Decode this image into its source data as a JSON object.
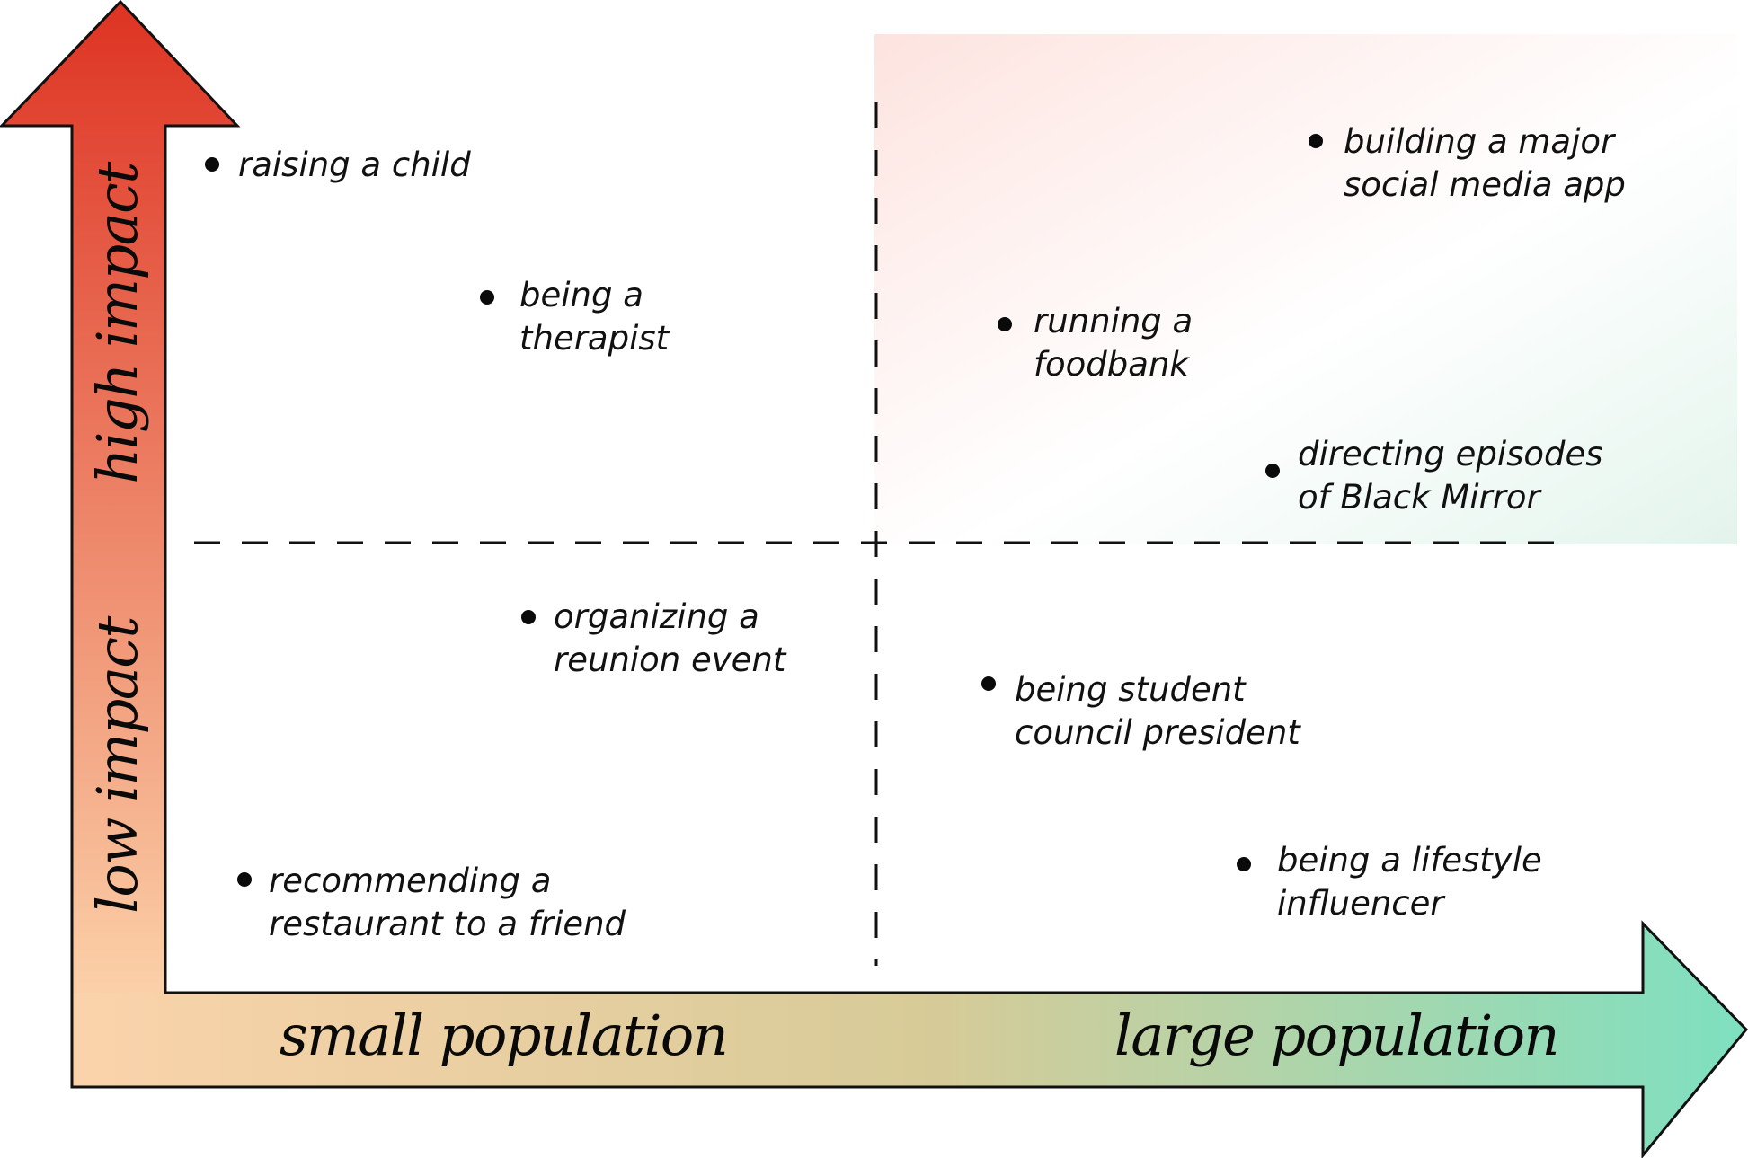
{
  "colors": {
    "vertical_arrow_top": "#de3323",
    "vertical_arrow_bottom": "#fbd0a8",
    "horizontal_arrow_left": "#fbd3ab",
    "horizontal_arrow_middle": "#d6cb98",
    "horizontal_arrow_right": "#7ee0c0",
    "quadrant_tint_pink": "#fde3df",
    "quadrant_tint_green": "#e3f4ec"
  },
  "axes": {
    "y_high": "high impact",
    "y_low": "low impact",
    "x_small": "small population",
    "x_large": "large population"
  },
  "items": [
    {
      "id": "raising-a-child",
      "lines": [
        "raising a child"
      ],
      "quadrant": "high impact / small population"
    },
    {
      "id": "being-a-therapist",
      "lines": [
        "being a",
        "therapist"
      ],
      "quadrant": "high impact / small population"
    },
    {
      "id": "building-social-media-app",
      "lines": [
        "building a major",
        "social media app"
      ],
      "quadrant": "high impact / large population"
    },
    {
      "id": "running-a-foodbank",
      "lines": [
        "running a",
        "foodbank"
      ],
      "quadrant": "high impact / large population"
    },
    {
      "id": "directing-black-mirror",
      "lines": [
        "directing episodes",
        "of Black Mirror"
      ],
      "quadrant": "high impact / large population"
    },
    {
      "id": "organizing-reunion",
      "lines": [
        "organizing a",
        "reunion event"
      ],
      "quadrant": "low impact / small population"
    },
    {
      "id": "recommending-restaurant",
      "lines": [
        "recommending a",
        "restaurant to a friend"
      ],
      "quadrant": "low impact / small population"
    },
    {
      "id": "student-council-president",
      "lines": [
        "being student",
        "council president"
      ],
      "quadrant": "low impact / large population"
    },
    {
      "id": "lifestyle-influencer",
      "lines": [
        "being a lifestyle",
        "influencer"
      ],
      "quadrant": "low impact / large population"
    }
  ]
}
